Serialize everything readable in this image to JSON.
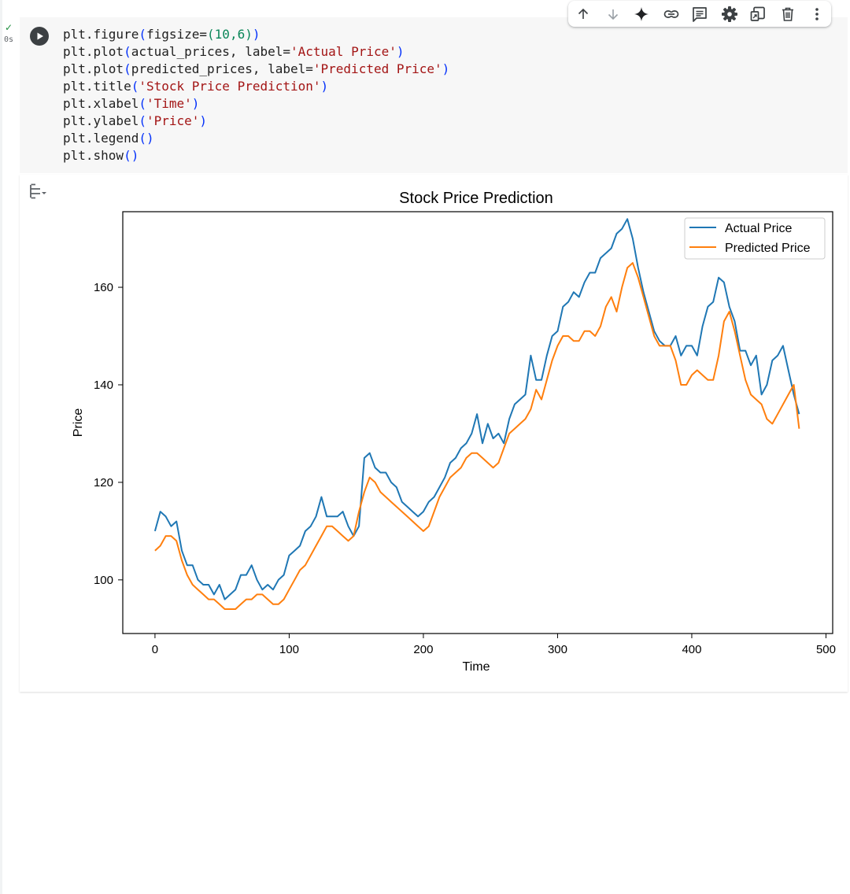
{
  "cell": {
    "status_check": "✓",
    "exec_time": "0s",
    "code_lines": [
      [
        {
          "t": "plt.figure",
          "c": ""
        },
        {
          "t": "(",
          "c": "par"
        },
        {
          "t": "figsize=",
          "c": ""
        },
        {
          "t": "(",
          "c": "num"
        },
        {
          "t": "10,6",
          "c": "num"
        },
        {
          "t": ")",
          "c": "num"
        },
        {
          "t": ")",
          "c": "par"
        }
      ],
      [
        {
          "t": "plt.plot",
          "c": ""
        },
        {
          "t": "(",
          "c": "par"
        },
        {
          "t": "actual_prices, label=",
          "c": ""
        },
        {
          "t": "'Actual Price'",
          "c": "str"
        },
        {
          "t": ")",
          "c": "par"
        }
      ],
      [
        {
          "t": "plt.plot",
          "c": ""
        },
        {
          "t": "(",
          "c": "par"
        },
        {
          "t": "predicted_prices, label=",
          "c": ""
        },
        {
          "t": "'Predicted Price'",
          "c": "str"
        },
        {
          "t": ")",
          "c": "par"
        }
      ],
      [
        {
          "t": "plt.title",
          "c": ""
        },
        {
          "t": "(",
          "c": "par"
        },
        {
          "t": "'Stock Price Prediction'",
          "c": "str"
        },
        {
          "t": ")",
          "c": "par"
        }
      ],
      [
        {
          "t": "plt.xlabel",
          "c": ""
        },
        {
          "t": "(",
          "c": "par"
        },
        {
          "t": "'Time'",
          "c": "str"
        },
        {
          "t": ")",
          "c": "par"
        }
      ],
      [
        {
          "t": "plt.ylabel",
          "c": ""
        },
        {
          "t": "(",
          "c": "par"
        },
        {
          "t": "'Price'",
          "c": "str"
        },
        {
          "t": ")",
          "c": "par"
        }
      ],
      [
        {
          "t": "plt.legend",
          "c": ""
        },
        {
          "t": "()",
          "c": "par"
        }
      ],
      [
        {
          "t": "plt.show",
          "c": ""
        },
        {
          "t": "()",
          "c": "par"
        }
      ]
    ]
  },
  "toolbar": {
    "icons": [
      "arrow-up-icon",
      "arrow-down-icon",
      "sparkle-icon",
      "link-icon",
      "comment-icon",
      "gear-icon",
      "mirror-cell-icon",
      "trash-icon",
      "more-vert-icon"
    ]
  },
  "colors": {
    "actual": "#1f77b4",
    "predicted": "#ff7f0e",
    "run_button": "#3c4043",
    "check": "#1e8e3e"
  },
  "chart_data": {
    "type": "line",
    "title": "Stock Price Prediction",
    "xlabel": "Time",
    "ylabel": "Price",
    "xlim": [
      -24,
      505
    ],
    "ylim": [
      89,
      175.5
    ],
    "xticks": [
      0,
      100,
      200,
      300,
      400,
      500
    ],
    "yticks": [
      100,
      120,
      140,
      160
    ],
    "legend": "top-right",
    "grid": false,
    "series": [
      {
        "name": "Actual Price",
        "x": [
          0,
          4,
          8,
          12,
          16,
          20,
          24,
          28,
          32,
          36,
          40,
          44,
          48,
          52,
          56,
          60,
          64,
          68,
          72,
          76,
          80,
          84,
          88,
          92,
          96,
          100,
          104,
          108,
          112,
          116,
          120,
          124,
          128,
          132,
          136,
          140,
          144,
          148,
          152,
          156,
          160,
          164,
          168,
          172,
          176,
          180,
          184,
          188,
          192,
          196,
          200,
          204,
          208,
          212,
          216,
          220,
          224,
          228,
          232,
          236,
          240,
          244,
          248,
          252,
          256,
          260,
          264,
          268,
          272,
          276,
          280,
          284,
          288,
          292,
          296,
          300,
          304,
          308,
          312,
          316,
          320,
          324,
          328,
          332,
          336,
          340,
          344,
          348,
          352,
          356,
          360,
          364,
          368,
          372,
          376,
          380,
          384,
          388,
          392,
          396,
          400,
          404,
          408,
          412,
          416,
          420,
          424,
          428,
          432,
          436,
          440,
          444,
          448,
          452,
          456,
          460,
          464,
          468,
          472,
          476,
          480
        ],
        "values": [
          110,
          114,
          113,
          111,
          112,
          106,
          103,
          103,
          100,
          99,
          99,
          97,
          99,
          96,
          97,
          98,
          101,
          101,
          103,
          100,
          98,
          99,
          98,
          100,
          101,
          105,
          106,
          107,
          110,
          111,
          113,
          117,
          113,
          113,
          113,
          114,
          111,
          109,
          111,
          125,
          126,
          123,
          122,
          122,
          120,
          119,
          116,
          115,
          114,
          113,
          114,
          116,
          117,
          119,
          121,
          124,
          125,
          127,
          128,
          130,
          134,
          128,
          132,
          129,
          130,
          128,
          133,
          136,
          137,
          138,
          146,
          141,
          141,
          146,
          150,
          151,
          156,
          157,
          159,
          158,
          161,
          163,
          163,
          166,
          167,
          168,
          171,
          172,
          174,
          170,
          164,
          159,
          155,
          151,
          149,
          148,
          148,
          150,
          146,
          148,
          148,
          146,
          152,
          156,
          157,
          162,
          161,
          156,
          153,
          147,
          147,
          144,
          146,
          138,
          140,
          145,
          146,
          148,
          143,
          138,
          134
        ]
      },
      {
        "name": "Predicted Price",
        "x": [
          0,
          4,
          8,
          12,
          16,
          20,
          24,
          28,
          32,
          36,
          40,
          44,
          48,
          52,
          56,
          60,
          64,
          68,
          72,
          76,
          80,
          84,
          88,
          92,
          96,
          100,
          104,
          108,
          112,
          116,
          120,
          124,
          128,
          132,
          136,
          140,
          144,
          148,
          152,
          156,
          160,
          164,
          168,
          172,
          176,
          180,
          184,
          188,
          192,
          196,
          200,
          204,
          208,
          212,
          216,
          220,
          224,
          228,
          232,
          236,
          240,
          244,
          248,
          252,
          256,
          260,
          264,
          268,
          272,
          276,
          280,
          284,
          288,
          292,
          296,
          300,
          304,
          308,
          312,
          316,
          320,
          324,
          328,
          332,
          336,
          340,
          344,
          348,
          352,
          356,
          360,
          364,
          368,
          372,
          376,
          380,
          384,
          388,
          392,
          396,
          400,
          404,
          408,
          412,
          416,
          420,
          424,
          428,
          432,
          436,
          440,
          444,
          448,
          452,
          456,
          460,
          464,
          468,
          472,
          476,
          480
        ],
        "values": [
          106,
          107,
          109,
          109,
          108,
          104,
          101,
          99,
          98,
          97,
          96,
          96,
          95,
          94,
          94,
          94,
          95,
          96,
          96,
          97,
          97,
          96,
          95,
          95,
          96,
          98,
          100,
          102,
          103,
          105,
          107,
          109,
          111,
          111,
          110,
          109,
          108,
          109,
          114,
          118,
          121,
          120,
          118,
          117,
          116,
          115,
          114,
          113,
          112,
          111,
          110,
          111,
          114,
          117,
          119,
          121,
          122,
          123,
          125,
          126,
          126,
          125,
          124,
          123,
          124,
          127,
          130,
          131,
          132,
          133,
          135,
          139,
          137,
          141,
          145,
          148,
          150,
          150,
          149,
          149,
          151,
          151,
          150,
          152,
          156,
          158,
          155,
          160,
          164,
          165,
          162,
          158,
          154,
          150,
          148,
          148,
          148,
          145,
          140,
          140,
          142,
          143,
          142,
          141,
          141,
          146,
          153,
          155,
          151,
          146,
          141,
          138,
          137,
          136,
          133,
          132,
          134,
          136,
          138,
          140,
          131
        ]
      }
    ]
  }
}
